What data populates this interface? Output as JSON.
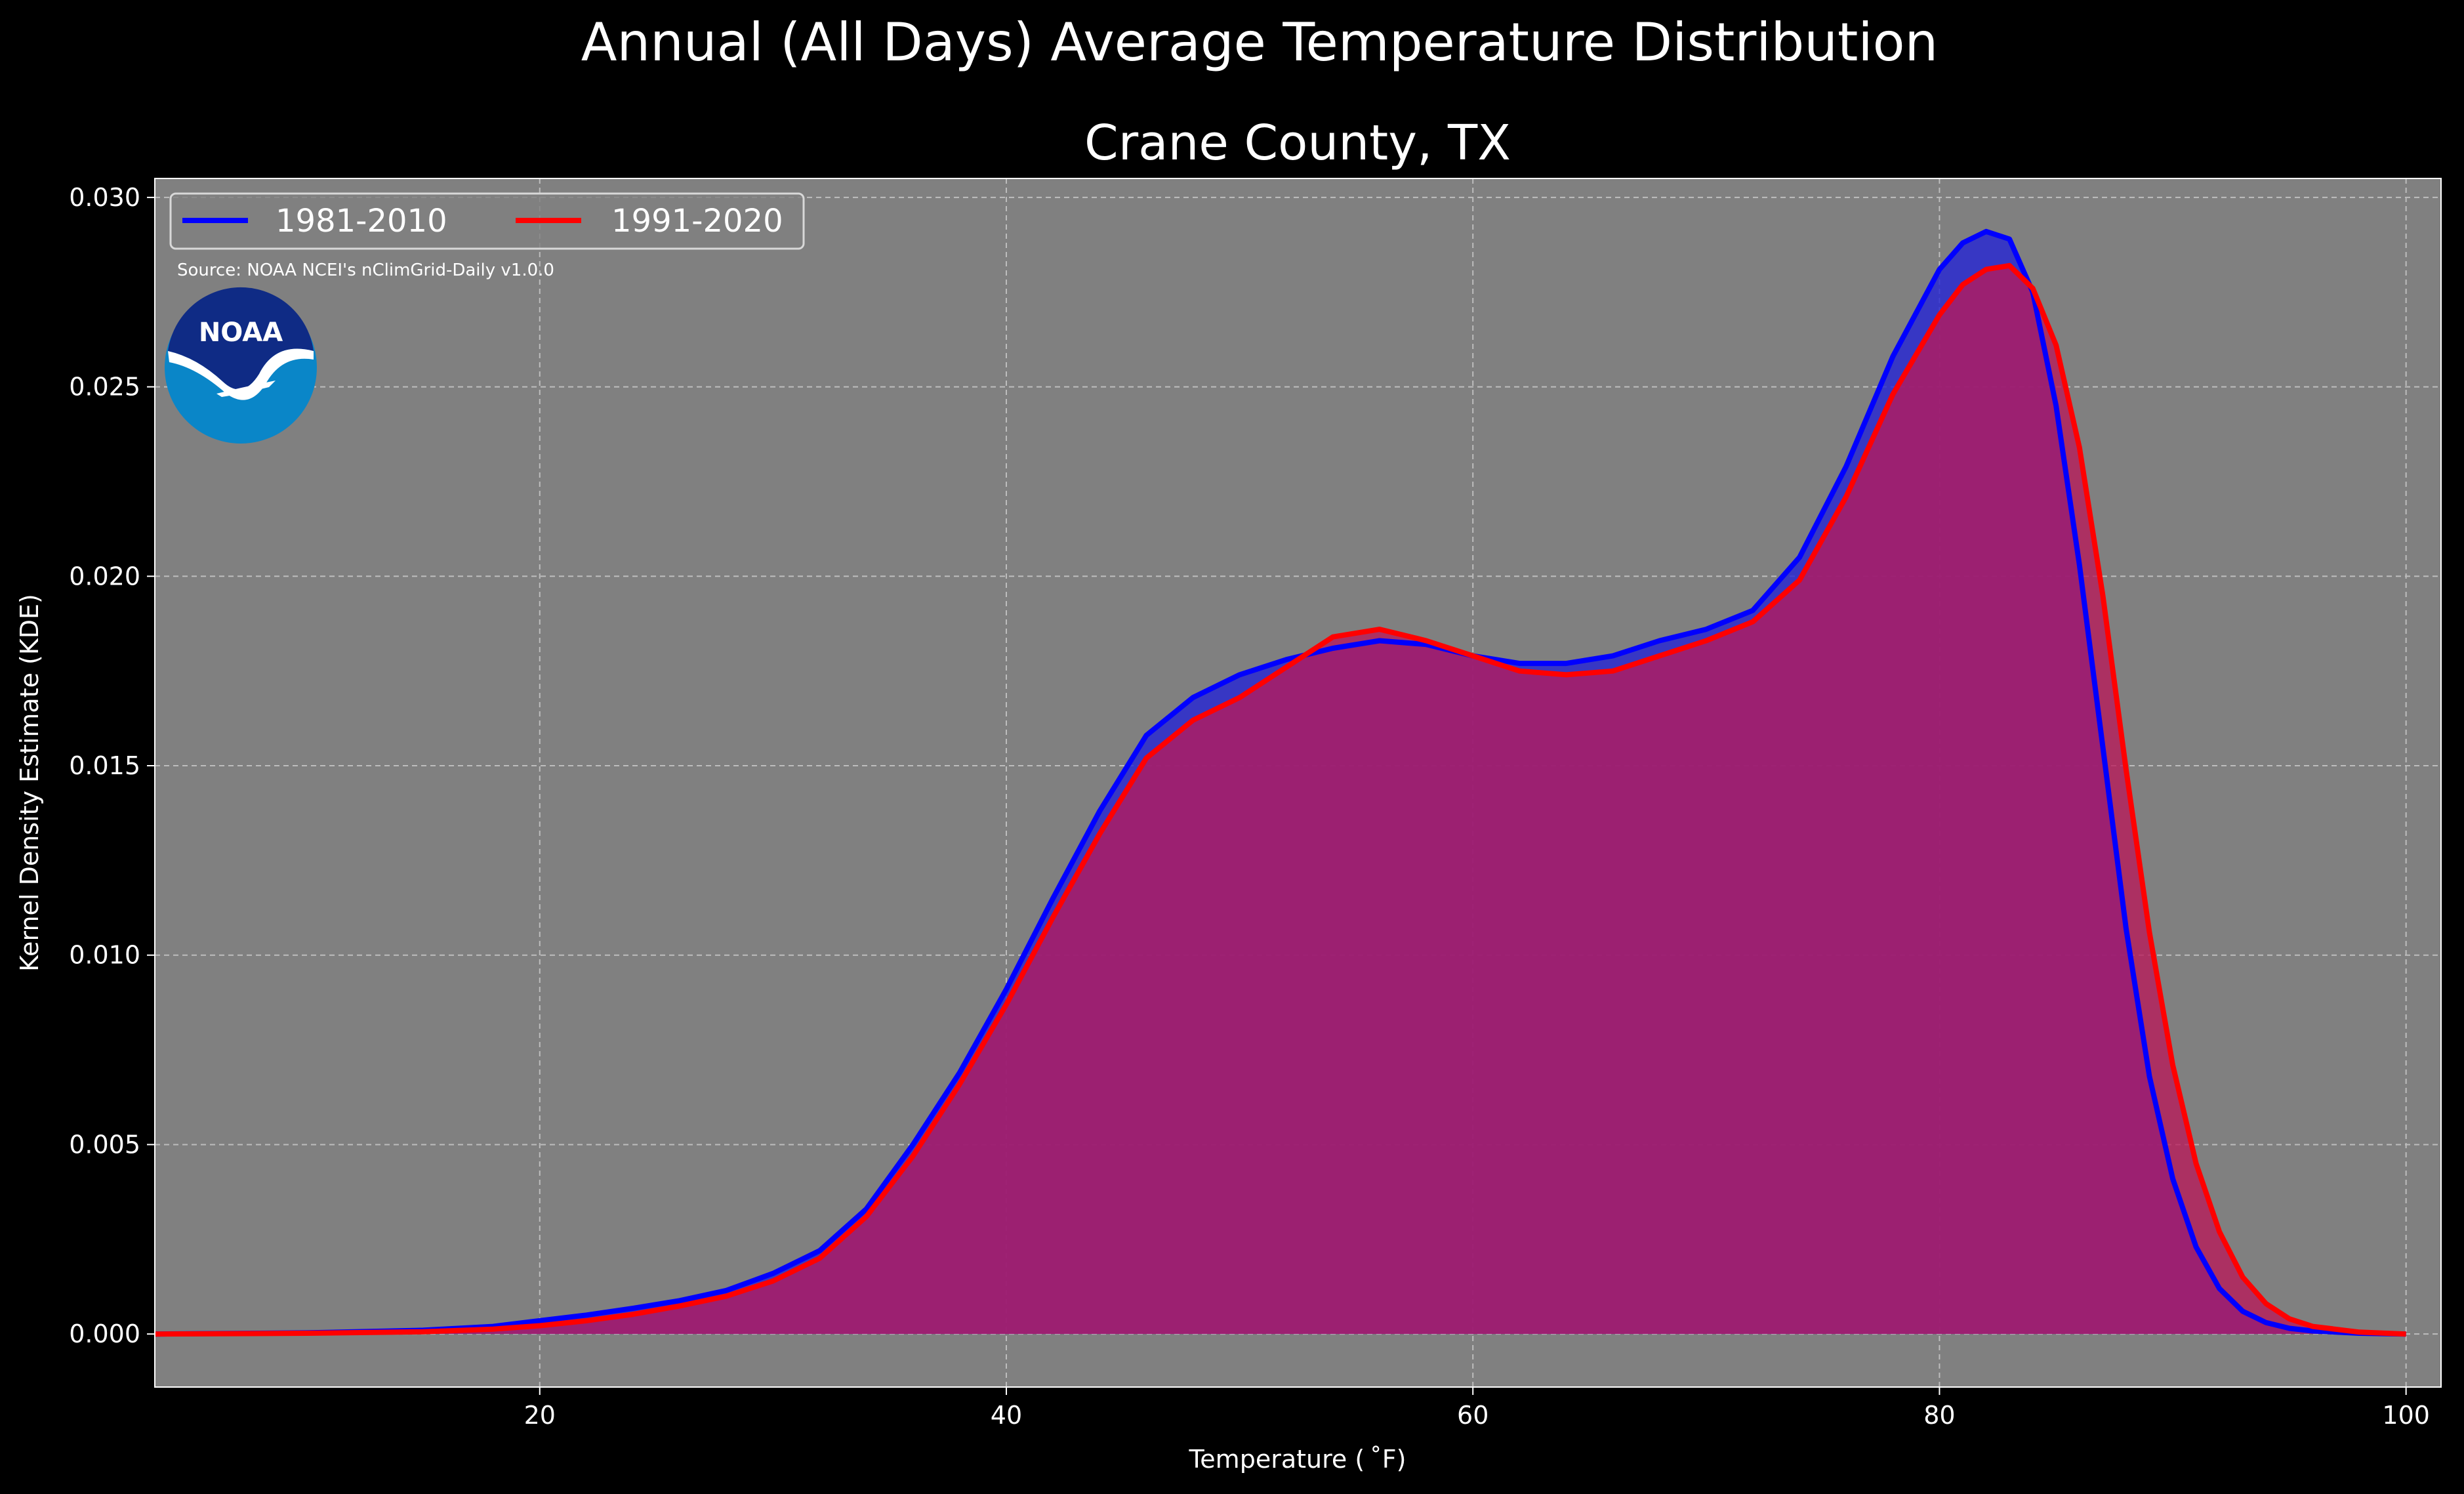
{
  "chart_data": {
    "type": "area",
    "suptitle": "Annual (All Days) Average Temperature Distribution",
    "title": "Crane County, TX",
    "xlabel": "Temperature ($^\\circ$F)",
    "xlabel_display": "Temperature ( ˚F)",
    "ylabel": "Kernel Density Estimate (KDE)",
    "xlim": [
      3.5,
      101.5
    ],
    "ylim": [
      -0.0014,
      0.0305
    ],
    "xticks": [
      20,
      40,
      60,
      80,
      100
    ],
    "xtick_labels": [
      "20",
      "40",
      "60",
      "80",
      "100"
    ],
    "yticks": [
      0.0,
      0.005,
      0.01,
      0.015,
      0.02,
      0.025,
      0.03
    ],
    "ytick_labels": [
      "0.000",
      "0.005",
      "0.010",
      "0.015",
      "0.020",
      "0.025",
      "0.030"
    ],
    "grid": true,
    "legend_position": "top-left",
    "source_note": "Source: NOAA NCEI's nClimGrid-Daily v1.0.0",
    "logo_text": "NOAA",
    "series": [
      {
        "name": "1981-2010",
        "line_color": "#0000ff",
        "fill_color": "#2424d4",
        "x": [
          3.5,
          10,
          15,
          18,
          20,
          22,
          24,
          26,
          28,
          30,
          32,
          34,
          36,
          38,
          40,
          42,
          44,
          46,
          48,
          50,
          52,
          54,
          56,
          58,
          60,
          62,
          64,
          66,
          68,
          70,
          72,
          74,
          76,
          78,
          80,
          81,
          82,
          83,
          84,
          85,
          86,
          87,
          88,
          89,
          90,
          91,
          92,
          93,
          94,
          95,
          96,
          98,
          100
        ],
        "y": [
          0.0,
          3e-05,
          0.0001,
          0.0002,
          0.00035,
          0.0005,
          0.00068,
          0.00088,
          0.00115,
          0.0016,
          0.0022,
          0.0033,
          0.005,
          0.0069,
          0.0091,
          0.0115,
          0.0138,
          0.0158,
          0.0168,
          0.0174,
          0.0178,
          0.0181,
          0.0183,
          0.0182,
          0.0179,
          0.0177,
          0.0177,
          0.0179,
          0.0183,
          0.0186,
          0.0191,
          0.0205,
          0.0229,
          0.0258,
          0.0281,
          0.0288,
          0.0291,
          0.0289,
          0.0275,
          0.0245,
          0.0203,
          0.0155,
          0.0107,
          0.0068,
          0.0041,
          0.0023,
          0.0012,
          0.0006,
          0.0003,
          0.00015,
          8e-05,
          2e-05,
          0.0
        ]
      },
      {
        "name": "1991-2020",
        "line_color": "#ff0000",
        "fill_color": "#b91a5a",
        "x": [
          3.5,
          10,
          15,
          18,
          20,
          22,
          24,
          26,
          28,
          30,
          32,
          34,
          36,
          38,
          40,
          42,
          44,
          46,
          48,
          50,
          52,
          54,
          56,
          58,
          60,
          62,
          64,
          66,
          68,
          70,
          72,
          74,
          76,
          78,
          80,
          81,
          82,
          83,
          84,
          85,
          86,
          87,
          88,
          89,
          90,
          91,
          92,
          93,
          94,
          95,
          96,
          98,
          100
        ],
        "y": [
          0.0,
          2e-05,
          6e-05,
          0.00013,
          0.00022,
          0.00035,
          0.00052,
          0.00074,
          0.001,
          0.0014,
          0.002,
          0.0031,
          0.0047,
          0.0066,
          0.0087,
          0.011,
          0.0132,
          0.0152,
          0.0162,
          0.0168,
          0.0176,
          0.0184,
          0.0186,
          0.0183,
          0.0179,
          0.0175,
          0.0174,
          0.0175,
          0.0179,
          0.0183,
          0.0188,
          0.0199,
          0.0221,
          0.0248,
          0.0269,
          0.0277,
          0.0281,
          0.0282,
          0.0276,
          0.0261,
          0.0234,
          0.0195,
          0.0149,
          0.0106,
          0.0071,
          0.0045,
          0.0027,
          0.0015,
          0.0008,
          0.0004,
          0.0002,
          5e-05,
          0.0
        ]
      }
    ]
  }
}
